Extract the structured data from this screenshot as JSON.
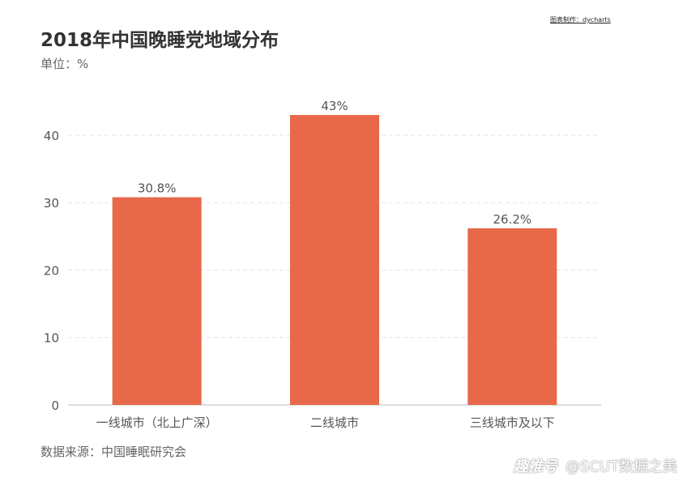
{
  "credit": "图表制作：dycharts",
  "title": "2018年中国晚睡党地域分布",
  "subtitle": "单位：%",
  "source": "数据来源：中国睡眠研究会",
  "watermark": {
    "logo": "趣推号",
    "text": "@SCUT数据之美"
  },
  "colors": {
    "bar": "#E8684A",
    "grid": "#E3E3E3",
    "axis": "#BBBBBB",
    "text": "#555555"
  },
  "chart_data": {
    "type": "bar",
    "categories": [
      "一线城市（北上广深）",
      "二线城市",
      "三线城市及以下"
    ],
    "values": [
      30.8,
      43,
      26.2
    ],
    "value_labels": [
      "30.8%",
      "43%",
      "26.2%"
    ],
    "title": "2018年中国晚睡党地域分布",
    "xlabel": "",
    "ylabel": "",
    "ylim": [
      0,
      43
    ],
    "yticks": [
      0,
      10,
      20,
      30,
      40
    ],
    "grid": true,
    "legend": "none"
  }
}
